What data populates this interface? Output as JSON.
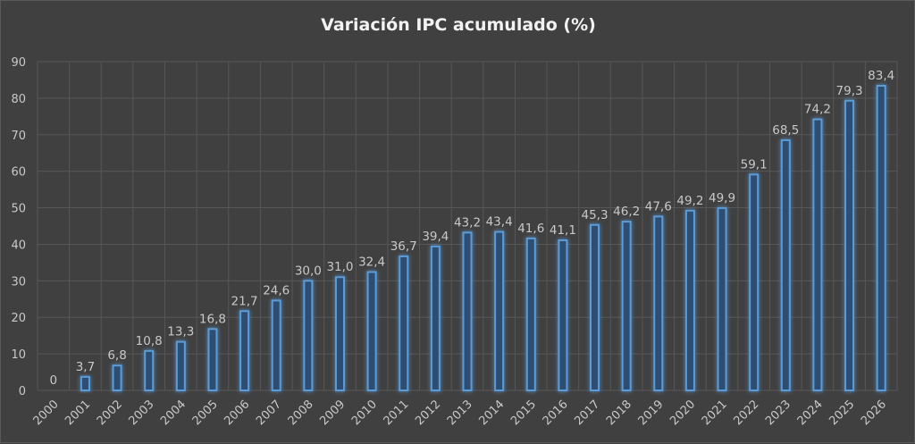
{
  "chart_data": {
    "type": "bar",
    "title": "Variación IPC acumulado (%)",
    "xlabel": "",
    "ylabel": "",
    "ylim": [
      0,
      90
    ],
    "yticks": [
      0,
      10,
      20,
      30,
      40,
      50,
      60,
      70,
      80,
      90
    ],
    "grid": true,
    "categories": [
      "2000",
      "2001",
      "2002",
      "2003",
      "2004",
      "2005",
      "2006",
      "2007",
      "2008",
      "2009",
      "2010",
      "2011",
      "2012",
      "2013",
      "2014",
      "2015",
      "2016",
      "2017",
      "2018",
      "2019",
      "2020",
      "2021",
      "2022",
      "2023",
      "2024",
      "2025",
      "2026"
    ],
    "values": [
      0,
      3.7,
      6.8,
      10.8,
      13.3,
      16.8,
      21.7,
      24.6,
      30.0,
      31.0,
      32.4,
      36.7,
      39.4,
      43.2,
      43.4,
      41.6,
      41.1,
      45.3,
      46.2,
      47.6,
      49.2,
      49.9,
      59.1,
      68.5,
      74.2,
      79.3,
      83.4
    ],
    "labels": [
      "0",
      "3,7",
      "6,8",
      "10,8",
      "13,3",
      "16,8",
      "21,7",
      "24,6",
      "30,0",
      "31,0",
      "32,4",
      "36,7",
      "39,4",
      "43,2",
      "43,4",
      "41,6",
      "41,1",
      "45,3",
      "46,2",
      "47,6",
      "49,2",
      "49,9",
      "59,1",
      "68,5",
      "74,2",
      "79,3",
      "83,4"
    ],
    "colors": {
      "bar_stroke": "#5b9bd5",
      "bar_fill": "#2f4d73",
      "grid": "#575757",
      "text": "#c8c8c8"
    }
  }
}
